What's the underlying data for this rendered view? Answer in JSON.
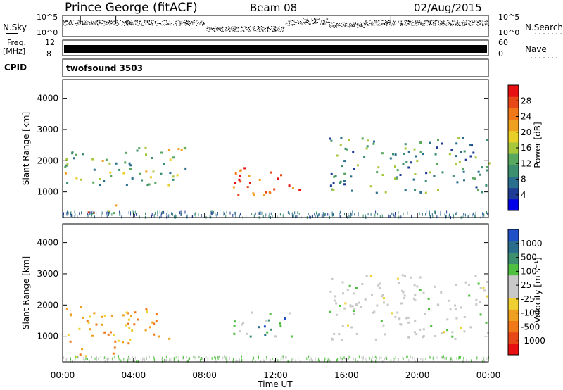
{
  "header": {
    "station": "Prince George (fitACF)",
    "beam": "Beam 08",
    "date": "02/Aug/2015"
  },
  "top_panels": {
    "nsky_label": "N.Sky",
    "nsearch_label": "N.Search",
    "noise_tick_hi": "10^5",
    "noise_tick_lo": "10^0",
    "freq_label_1": "Freq.",
    "freq_label_2": "[MHz]",
    "freq_tick_hi": "12",
    "freq_tick_lo": "8",
    "nave_label": "Nave",
    "nave_tick_hi": "60",
    "nave_tick_lo": "0",
    "cpid_label": "CPID",
    "cpid_value": "twofsound 3503",
    "dots": "......."
  },
  "chart_data": [
    {
      "type": "heatmap",
      "title": "",
      "ylabel": "Slant Range [km]",
      "xlabel": "",
      "yticks": [
        "1000",
        "2000",
        "3000",
        "4000"
      ],
      "ylim": [
        180,
        4600
      ],
      "colorbar": {
        "label": "Power [dB]",
        "ticks": [
          "4",
          "8",
          "12",
          "16",
          "20",
          "24",
          "28"
        ],
        "colors": [
          "#0000e8",
          "#1e3c96",
          "#2a6e8e",
          "#3c9070",
          "#58a860",
          "#a8c83c",
          "#e8d028",
          "#f0a020",
          "#f07818",
          "#e84818",
          "#e81010"
        ]
      },
      "regions": [
        {
          "t": [
            0.0,
            3.5
          ],
          "r": [
            1200,
            2300
          ],
          "level": "mid"
        },
        {
          "t": [
            1.0,
            3.5
          ],
          "r": [
            350,
            650
          ],
          "level": "mid-high"
        },
        {
          "t": [
            3.5,
            7.0
          ],
          "r": [
            1100,
            2500
          ],
          "level": "mid"
        },
        {
          "t": [
            9.0,
            12.5
          ],
          "r": [
            900,
            1800
          ],
          "level": "high"
        },
        {
          "t": [
            12.0,
            13.5
          ],
          "r": [
            1000,
            1500
          ],
          "level": "high"
        },
        {
          "t": [
            15.0,
            24.0
          ],
          "r": [
            1000,
            2800
          ],
          "level": "low-mid"
        }
      ]
    },
    {
      "type": "heatmap",
      "title": "",
      "ylabel": "Slant Range [km]",
      "xlabel": "Time UT",
      "xticks": [
        "00:00",
        "04:00",
        "08:00",
        "12:00",
        "16:00",
        "20:00",
        "00:00"
      ],
      "yticks": [
        "1000",
        "2000",
        "3000",
        "4000"
      ],
      "ylim": [
        180,
        4600
      ],
      "colorbar": {
        "label": "Velocity [m s⁻¹]",
        "ticks": [
          "1000",
          "500",
          "100",
          "25",
          "-25",
          "-100",
          "-500",
          "-1000"
        ],
        "colors": [
          "#2050c8",
          "#2a6e8e",
          "#3c9070",
          "#50c040",
          "#c8c8c8",
          "#c8c8c8",
          "#f0d030",
          "#f0a020",
          "#f07818",
          "#e84818",
          "#e81010"
        ]
      },
      "regions": [
        {
          "t": [
            0.0,
            6.0
          ],
          "r": [
            800,
            2000
          ],
          "velocity": "negative"
        },
        {
          "t": [
            0.5,
            3.0
          ],
          "r": [
            350,
            700
          ],
          "velocity": "negative"
        },
        {
          "t": [
            9.0,
            13.0
          ],
          "r": [
            1000,
            1800
          ],
          "velocity": "positive"
        },
        {
          "t": [
            15.0,
            24.0
          ],
          "r": [
            900,
            3000
          ],
          "velocity": "near-zero"
        }
      ]
    }
  ]
}
